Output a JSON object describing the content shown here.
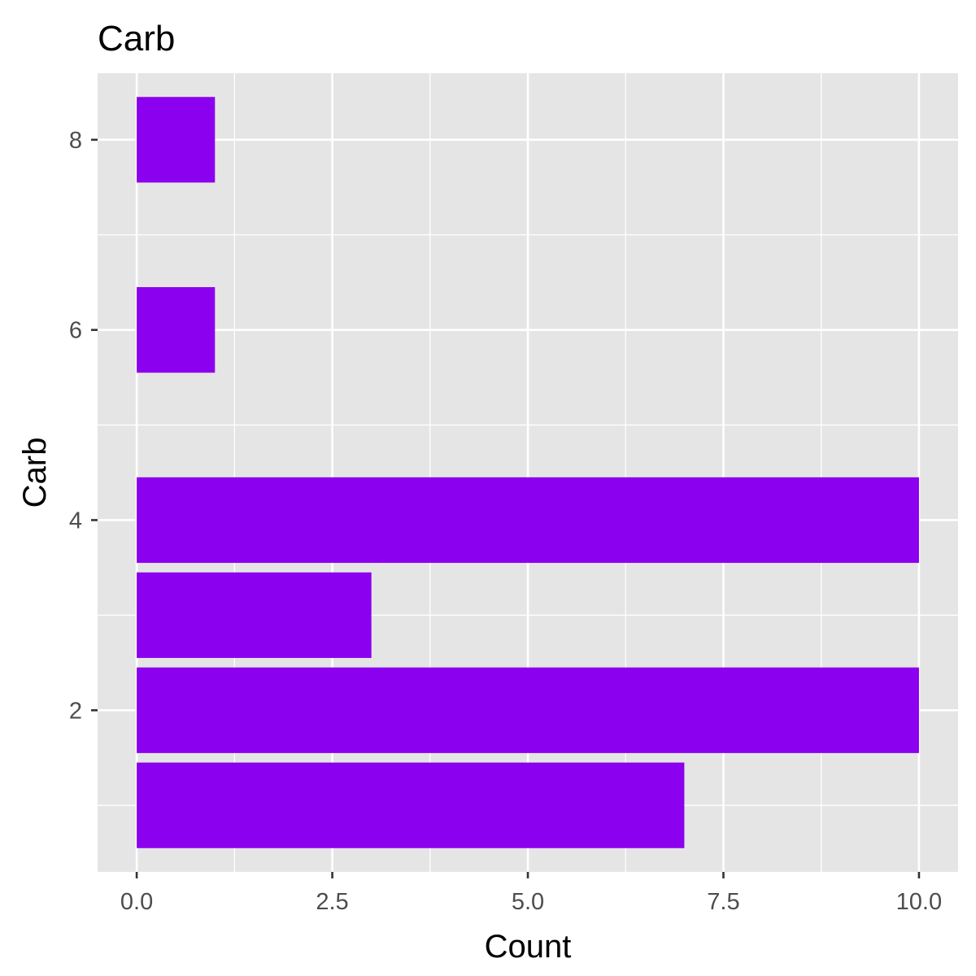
{
  "chart_data": {
    "type": "bar",
    "orientation": "horizontal",
    "title": "Carb",
    "xlabel": "Count",
    "ylabel": "Carb",
    "y_values": [
      1,
      2,
      3,
      4,
      6,
      8
    ],
    "values": [
      7,
      10,
      3,
      10,
      1,
      1
    ],
    "xlim": [
      -0.5,
      10.5
    ],
    "ylim": [
      0.3,
      8.7
    ],
    "x_ticks": [
      "0.0",
      "2.5",
      "5.0",
      "7.5",
      "10.0"
    ],
    "x_tick_values": [
      0,
      2.5,
      5,
      7.5,
      10
    ],
    "y_ticks": [
      "2",
      "4",
      "6",
      "8"
    ],
    "y_tick_values": [
      2,
      4,
      6,
      8
    ],
    "grid": true,
    "bar_color": "#8B00EE",
    "panel_color": "#E5E5E5",
    "grid_color": "#FFFFFF"
  }
}
